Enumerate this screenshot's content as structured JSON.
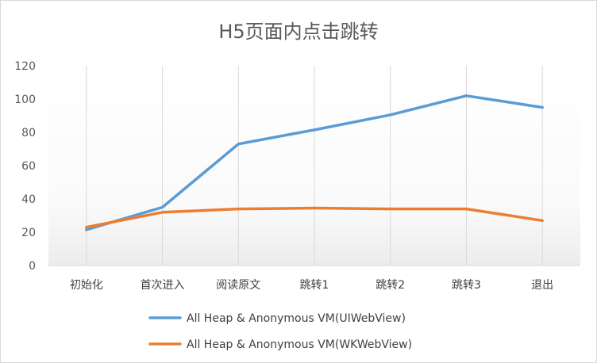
{
  "chart_data": {
    "type": "line",
    "title": "H5页面内点击跳转",
    "xlabel": "",
    "ylabel": "",
    "categories": [
      "初始化",
      "首次进入",
      "阅读原文",
      "跳转1",
      "跳转2",
      "跳转3",
      "退出"
    ],
    "ylim": [
      0,
      120
    ],
    "yticks": [
      0,
      20,
      40,
      60,
      80,
      100,
      120
    ],
    "grid": "vertical-category-lines",
    "legend_position": "bottom",
    "series": [
      {
        "name": "All Heap & Anonymous VM(UIWebView)",
        "color": "#5b9bd5",
        "values": [
          21.5,
          35,
          73,
          81.5,
          90.5,
          102,
          95
        ]
      },
      {
        "name": "All Heap & Anonymous VM(WKWebView)",
        "color": "#ed7d31",
        "values": [
          23,
          32,
          34,
          34.5,
          34,
          34,
          27
        ]
      }
    ]
  }
}
